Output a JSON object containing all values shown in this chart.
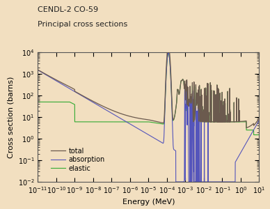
{
  "title_line1": "CENDL-2 CO-59",
  "title_line2": "Principal cross sections",
  "xlabel": "Energy (MeV)",
  "ylabel": "Cross section (barns)",
  "xlim_log": [
    -11,
    1
  ],
  "ylim_log": [
    -2,
    4
  ],
  "bg_color": "#f2dfc0",
  "plot_bg_color": "#f2dfc0",
  "legend_entries": [
    "total",
    "absorption",
    "elastic"
  ],
  "line_colors": {
    "total": "#6b5a4e",
    "absorption": "#5555bb",
    "elastic": "#33aa33"
  },
  "legend_fontsize": 7,
  "axis_fontsize": 8,
  "title_fontsize": 8
}
